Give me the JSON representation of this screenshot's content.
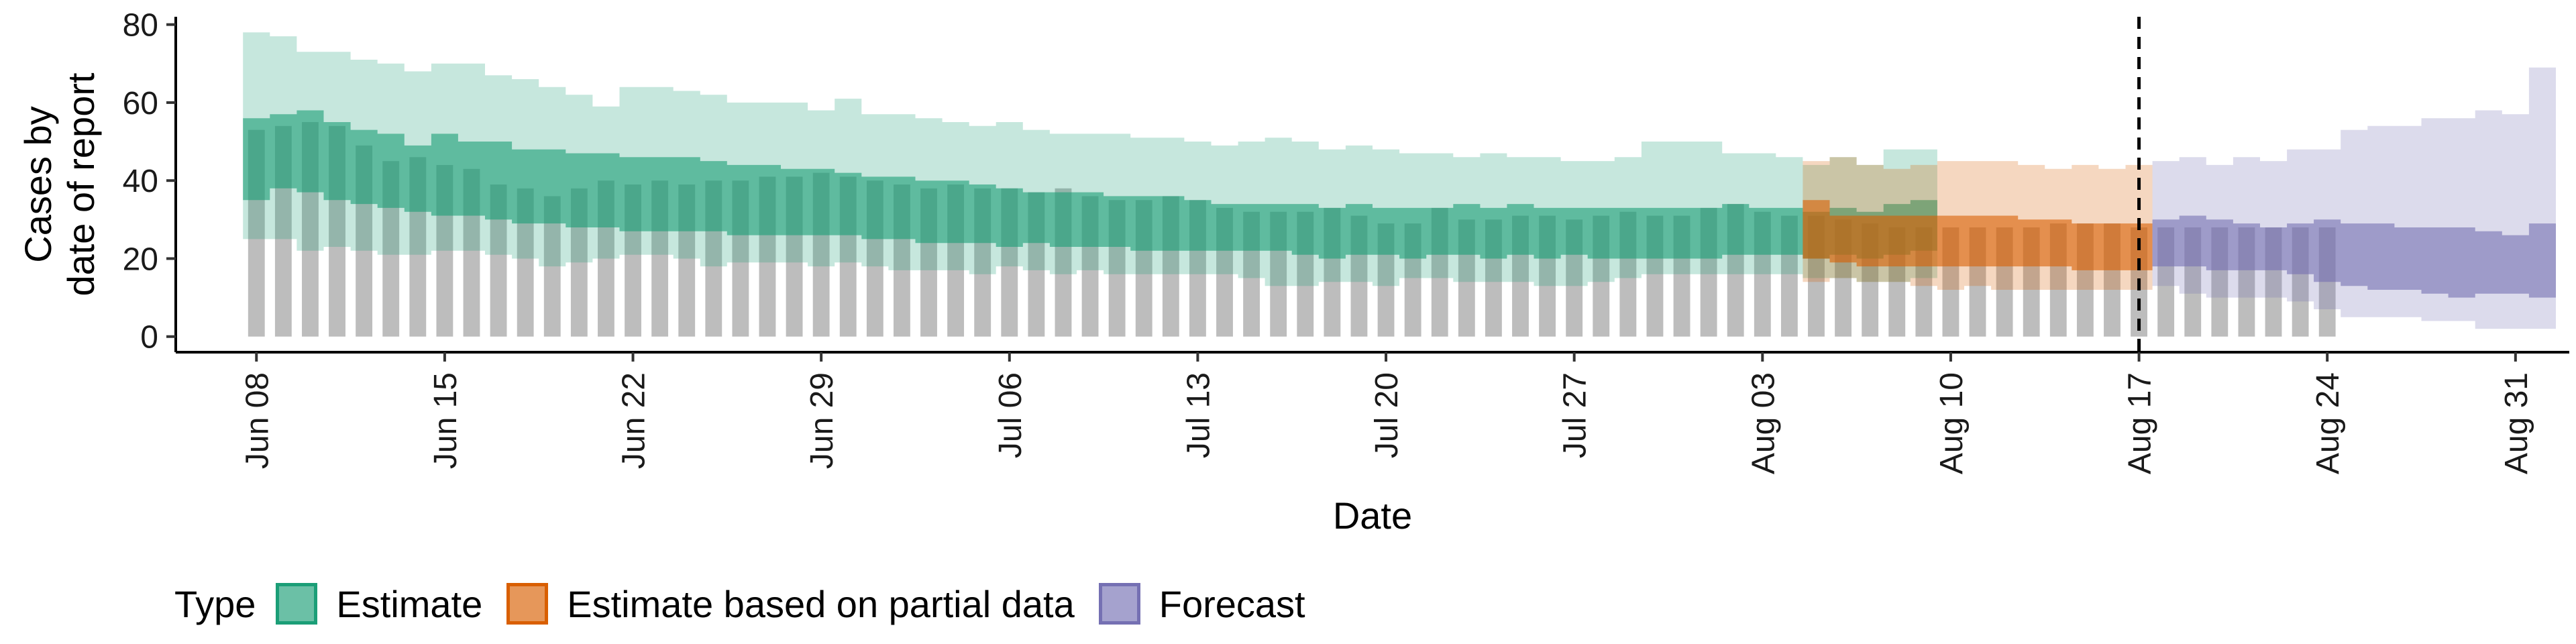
{
  "chart_data": {
    "type": "bar",
    "ylabel_lines": [
      "Cases by",
      "date of report"
    ],
    "xlabel": "Date",
    "ylim": [
      -4,
      82
    ],
    "y_ticks": [
      0,
      20,
      40,
      60,
      80
    ],
    "x_range": [
      "2021-06-05",
      "2021-09-02"
    ],
    "x_ticks": [
      {
        "date": "2021-06-08",
        "label": "Jun 08"
      },
      {
        "date": "2021-06-15",
        "label": "Jun 15"
      },
      {
        "date": "2021-06-22",
        "label": "Jun 22"
      },
      {
        "date": "2021-06-29",
        "label": "Jun 29"
      },
      {
        "date": "2021-07-06",
        "label": "Jul 06"
      },
      {
        "date": "2021-07-13",
        "label": "Jul 13"
      },
      {
        "date": "2021-07-20",
        "label": "Jul 20"
      },
      {
        "date": "2021-07-27",
        "label": "Jul 27"
      },
      {
        "date": "2021-08-03",
        "label": "Aug 03"
      },
      {
        "date": "2021-08-10",
        "label": "Aug 10"
      },
      {
        "date": "2021-08-17",
        "label": "Aug 17"
      },
      {
        "date": "2021-08-24",
        "label": "Aug 24"
      },
      {
        "date": "2021-08-31",
        "label": "Aug 31"
      }
    ],
    "vline_date": "2021-08-17",
    "grid": false,
    "legend": {
      "title": "Type",
      "position": "bottom",
      "items": [
        {
          "label": "Estimate",
          "color": "#1b9e77"
        },
        {
          "label": "Estimate based on partial data",
          "color": "#d95f02"
        },
        {
          "label": "Forecast",
          "color": "#7570b3"
        }
      ]
    },
    "observed_bars": {
      "start_date": "2021-06-08",
      "color": "#bdbdbd",
      "values": [
        53,
        54,
        55,
        54,
        49,
        45,
        46,
        44,
        43,
        39,
        38,
        36,
        38,
        40,
        39,
        40,
        39,
        40,
        40,
        41,
        41,
        42,
        41,
        40,
        39,
        38,
        39,
        38,
        38,
        37,
        38,
        36,
        35,
        35,
        36,
        35,
        33,
        32,
        32,
        32,
        33,
        31,
        29,
        29,
        33,
        30,
        30,
        31,
        31,
        30,
        31,
        32,
        31,
        31,
        33,
        34,
        32,
        31,
        31,
        30,
        29,
        28,
        28,
        28,
        28,
        28,
        28,
        29,
        29,
        29,
        28,
        28,
        28,
        28,
        28,
        28,
        28,
        28
      ]
    },
    "series": [
      {
        "name": "Estimate",
        "color": "#1b9e77",
        "start_date": "2021-06-08",
        "outer_upper": [
          78,
          77,
          73,
          73,
          71,
          70,
          68,
          70,
          70,
          67,
          66,
          64,
          62,
          59,
          64,
          64,
          63,
          62,
          60,
          60,
          60,
          58,
          61,
          57,
          57,
          56,
          55,
          54,
          55,
          53,
          52,
          52,
          52,
          51,
          51,
          50,
          49,
          50,
          51,
          50,
          48,
          49,
          48,
          47,
          47,
          46,
          47,
          46,
          46,
          45,
          45,
          46,
          50,
          50,
          50,
          47,
          47,
          46,
          44,
          46,
          44,
          48,
          48
        ],
        "inner_upper": [
          56,
          57,
          58,
          55,
          53,
          52,
          49,
          52,
          50,
          50,
          48,
          48,
          47,
          47,
          46,
          46,
          46,
          45,
          44,
          44,
          43,
          43,
          42,
          41,
          41,
          40,
          40,
          39,
          38,
          37,
          37,
          37,
          36,
          36,
          36,
          35,
          34,
          34,
          34,
          34,
          33,
          34,
          33,
          33,
          33,
          34,
          33,
          34,
          33,
          33,
          33,
          33,
          33,
          33,
          33,
          34,
          33,
          33,
          32,
          33,
          32,
          34,
          35
        ],
        "inner_lower": [
          35,
          38,
          37,
          35,
          34,
          33,
          32,
          31,
          31,
          30,
          29,
          29,
          28,
          28,
          27,
          27,
          27,
          27,
          26,
          26,
          26,
          26,
          26,
          25,
          25,
          24,
          24,
          24,
          23,
          24,
          23,
          23,
          23,
          22,
          22,
          22,
          22,
          22,
          22,
          21,
          20,
          21,
          21,
          20,
          21,
          21,
          20,
          21,
          20,
          21,
          20,
          20,
          20,
          20,
          20,
          21,
          21,
          21,
          20,
          21,
          20,
          21,
          22
        ],
        "outer_lower": [
          25,
          25,
          22,
          23,
          22,
          21,
          21,
          22,
          22,
          21,
          20,
          18,
          19,
          20,
          21,
          21,
          20,
          18,
          19,
          19,
          19,
          18,
          19,
          18,
          17,
          17,
          17,
          16,
          18,
          17,
          16,
          17,
          16,
          16,
          16,
          16,
          16,
          15,
          13,
          13,
          14,
          14,
          13,
          15,
          15,
          14,
          14,
          14,
          13,
          13,
          14,
          15,
          16,
          16,
          16,
          16,
          16,
          16,
          15,
          15,
          14,
          14,
          15
        ]
      },
      {
        "name": "Estimate based on partial data",
        "color": "#d95f02",
        "start_date": "2021-08-05",
        "outer_upper": [
          45,
          46,
          44,
          43,
          44,
          45,
          45,
          45,
          44,
          43,
          44,
          43,
          44
        ],
        "inner_upper": [
          35,
          31,
          31,
          31,
          31,
          31,
          31,
          31,
          30,
          30,
          29,
          29,
          29
        ],
        "inner_lower": [
          20,
          19,
          18,
          18,
          18,
          18,
          18,
          18,
          18,
          18,
          17,
          17,
          17
        ],
        "outer_lower": [
          14,
          15,
          14,
          14,
          13,
          12,
          13,
          12,
          12,
          12,
          12,
          12,
          12
        ]
      },
      {
        "name": "Forecast",
        "color": "#7570b3",
        "start_date": "2021-08-18",
        "outer_upper": [
          45,
          46,
          44,
          46,
          45,
          48,
          48,
          53,
          54,
          54,
          56,
          56,
          58,
          57,
          69
        ],
        "inner_upper": [
          30,
          31,
          30,
          29,
          28,
          29,
          30,
          29,
          29,
          28,
          28,
          28,
          27,
          26,
          29
        ],
        "inner_lower": [
          18,
          18,
          17,
          17,
          17,
          16,
          14,
          13,
          12,
          12,
          11,
          10,
          11,
          11,
          10
        ],
        "outer_lower": [
          13,
          11,
          10,
          10,
          10,
          9,
          7,
          5,
          5,
          5,
          4,
          4,
          2,
          2,
          2
        ]
      }
    ]
  }
}
